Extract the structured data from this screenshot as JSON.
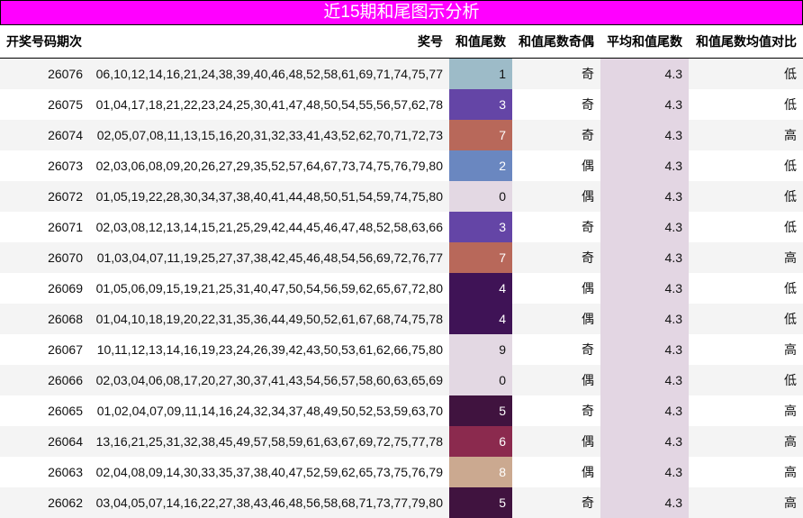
{
  "title": "近15期和尾图示分析",
  "headers": [
    "开奖号码期次",
    "奖号",
    "和值尾数",
    "和值尾数奇偶",
    "平均和值尾数",
    "和值尾数均值对比"
  ],
  "colors": {
    "0": "#e3d8e3",
    "1": "#9dbbc8",
    "2": "#6a87c0",
    "3": "#6445a6",
    "4": "#3f1356",
    "5": "#40133f",
    "6": "#8b2a4e",
    "7": "#b8685a",
    "8": "#cba990",
    "9": "#e3d8e3"
  },
  "rows": [
    {
      "period": "26076",
      "numbers": "06,10,12,14,16,21,24,38,39,40,46,48,52,58,61,69,71,74,75,77",
      "tail": "1",
      "parity": "奇",
      "avg": "4.3",
      "cmp": "低"
    },
    {
      "period": "26075",
      "numbers": "01,04,17,18,21,22,23,24,25,30,41,47,48,50,54,55,56,57,62,78",
      "tail": "3",
      "parity": "奇",
      "avg": "4.3",
      "cmp": "低"
    },
    {
      "period": "26074",
      "numbers": "02,05,07,08,11,13,15,16,20,31,32,33,41,43,52,62,70,71,72,73",
      "tail": "7",
      "parity": "奇",
      "avg": "4.3",
      "cmp": "高"
    },
    {
      "period": "26073",
      "numbers": "02,03,06,08,09,20,26,27,29,35,52,57,64,67,73,74,75,76,79,80",
      "tail": "2",
      "parity": "偶",
      "avg": "4.3",
      "cmp": "低"
    },
    {
      "period": "26072",
      "numbers": "01,05,19,22,28,30,34,37,38,40,41,44,48,50,51,54,59,74,75,80",
      "tail": "0",
      "parity": "偶",
      "avg": "4.3",
      "cmp": "低"
    },
    {
      "period": "26071",
      "numbers": "02,03,08,12,13,14,15,21,25,29,42,44,45,46,47,48,52,58,63,66",
      "tail": "3",
      "parity": "奇",
      "avg": "4.3",
      "cmp": "低"
    },
    {
      "period": "26070",
      "numbers": "01,03,04,07,11,19,25,27,37,38,42,45,46,48,54,56,69,72,76,77",
      "tail": "7",
      "parity": "奇",
      "avg": "4.3",
      "cmp": "高"
    },
    {
      "period": "26069",
      "numbers": "01,05,06,09,15,19,21,25,31,40,47,50,54,56,59,62,65,67,72,80",
      "tail": "4",
      "parity": "偶",
      "avg": "4.3",
      "cmp": "低"
    },
    {
      "period": "26068",
      "numbers": "01,04,10,18,19,20,22,31,35,36,44,49,50,52,61,67,68,74,75,78",
      "tail": "4",
      "parity": "偶",
      "avg": "4.3",
      "cmp": "低"
    },
    {
      "period": "26067",
      "numbers": "10,11,12,13,14,16,19,23,24,26,39,42,43,50,53,61,62,66,75,80",
      "tail": "9",
      "parity": "奇",
      "avg": "4.3",
      "cmp": "高"
    },
    {
      "period": "26066",
      "numbers": "02,03,04,06,08,17,20,27,30,37,41,43,54,56,57,58,60,63,65,69",
      "tail": "0",
      "parity": "偶",
      "avg": "4.3",
      "cmp": "低"
    },
    {
      "period": "26065",
      "numbers": "01,02,04,07,09,11,14,16,24,32,34,37,48,49,50,52,53,59,63,70",
      "tail": "5",
      "parity": "奇",
      "avg": "4.3",
      "cmp": "高"
    },
    {
      "period": "26064",
      "numbers": "13,16,21,25,31,32,38,45,49,57,58,59,61,63,67,69,72,75,77,78",
      "tail": "6",
      "parity": "偶",
      "avg": "4.3",
      "cmp": "高"
    },
    {
      "period": "26063",
      "numbers": "02,04,08,09,14,30,33,35,37,38,40,47,52,59,62,65,73,75,76,79",
      "tail": "8",
      "parity": "偶",
      "avg": "4.3",
      "cmp": "高"
    },
    {
      "period": "26062",
      "numbers": "03,04,05,07,14,16,22,27,38,43,46,48,56,58,68,71,73,77,79,80",
      "tail": "5",
      "parity": "奇",
      "avg": "4.3",
      "cmp": "高"
    }
  ]
}
